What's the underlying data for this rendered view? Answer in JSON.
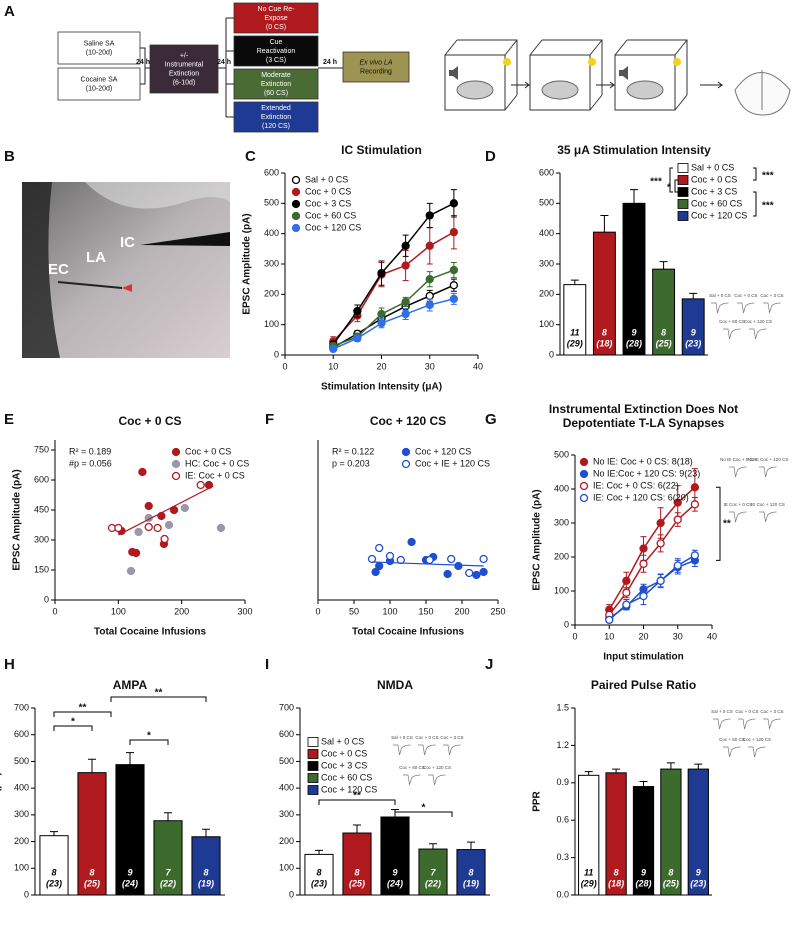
{
  "panel_a": {
    "panel": "A",
    "boxes": [
      {
        "lines": [
          "Saline SA",
          "(10-20d)"
        ]
      },
      {
        "lines": [
          "Cocaine SA",
          "(10-20d)"
        ]
      },
      {
        "lines": [
          "+/-",
          "Instrumental",
          "Extinction",
          "(6-10d)"
        ]
      },
      {
        "lines": [
          "No Cue Re-",
          "Expose",
          "(0 CS)"
        ]
      },
      {
        "lines": [
          "Cue",
          "Reactivation",
          "(3 CS)"
        ]
      },
      {
        "lines": [
          "Moderate",
          "Extinction",
          "(60 CS)"
        ]
      },
      {
        "lines": [
          "Extended",
          "Extinction",
          "(120 CS)"
        ]
      },
      {
        "lines": [
          "Ex vivo LA",
          "Recording"
        ]
      }
    ],
    "arrows": [
      "24 h",
      "24 h",
      "24 h"
    ]
  },
  "panel_b": {
    "panel": "B",
    "labels": [
      "EC",
      "LA",
      "IC"
    ]
  },
  "chart_data": [
    {
      "type": "line",
      "panel": "C",
      "title": "IC Stimulation",
      "xlabel": "Stimulation Intensity (μA)",
      "ylabel": "EPSC Amplitude (pA)",
      "xlim": [
        0,
        40
      ],
      "xticks": [
        0,
        10,
        20,
        30,
        40
      ],
      "ylim": [
        0,
        600
      ],
      "yticks": [
        0,
        100,
        200,
        300,
        400,
        500,
        600
      ],
      "x": [
        10,
        15,
        20,
        25,
        30,
        35
      ],
      "series": [
        {
          "name": "Sal + 0 CS",
          "color": "#000000",
          "filled": false,
          "values": [
            25,
            70,
            120,
            160,
            195,
            230
          ],
          "errors": [
            6,
            10,
            12,
            15,
            18,
            20
          ]
        },
        {
          "name": "Coc + 0 CS",
          "color": "#b0191e",
          "filled": true,
          "values": [
            45,
            130,
            265,
            295,
            360,
            405
          ],
          "errors": [
            15,
            20,
            40,
            50,
            60,
            55
          ]
        },
        {
          "name": "Coc + 3 CS",
          "color": "#000000",
          "filled": true,
          "values": [
            35,
            145,
            270,
            360,
            460,
            500
          ],
          "errors": [
            10,
            20,
            40,
            35,
            40,
            45
          ]
        },
        {
          "name": "Coc + 60 CS",
          "color": "#3d6b2e",
          "filled": true,
          "values": [
            30,
            60,
            135,
            175,
            250,
            280
          ],
          "errors": [
            8,
            12,
            20,
            15,
            25,
            25
          ]
        },
        {
          "name": "Coc + 120 CS",
          "color": "#2f6fe8",
          "filled": true,
          "values": [
            20,
            55,
            105,
            135,
            165,
            185
          ],
          "errors": [
            5,
            10,
            15,
            18,
            20,
            18
          ]
        }
      ]
    },
    {
      "type": "bar",
      "panel": "D",
      "title": "35 μA Stimulation Intensity",
      "ylim": [
        0,
        600
      ],
      "yticks": [
        0,
        100,
        200,
        300,
        400,
        500,
        600
      ],
      "values": [
        232,
        405,
        500,
        283,
        185
      ],
      "errors": [
        15,
        55,
        45,
        25,
        18
      ],
      "colors": [
        "#ffffff",
        "#b0191e",
        "#000000",
        "#3d6b2e",
        "#1f3a93"
      ],
      "n_labels": [
        [
          "11",
          "(29)"
        ],
        [
          "8",
          "(18)"
        ],
        [
          "9",
          "(28)"
        ],
        [
          "8",
          "(25)"
        ],
        [
          "9",
          "(23)"
        ]
      ],
      "legend": [
        "Sal + 0 CS",
        "Coc + 0 CS",
        "Coc + 3 CS",
        "Coc + 60 CS",
        "Coc + 120 CS"
      ],
      "annotations": [
        "***",
        "*",
        "***",
        "***"
      ],
      "inset_labels": [
        "Sal + 0 CS",
        "Coc + 0 CS",
        "Coc + 3 CS",
        "Coc + 60 CS",
        "Coc + 120 CS"
      ]
    },
    {
      "type": "scatter",
      "panel": "E",
      "title": "Coc + 0 CS",
      "xlabel": "Total Cocaine Infusions",
      "ylabel": "EPSC Amplitude (pA)",
      "xlim": [
        0,
        300
      ],
      "xticks": [
        0,
        100,
        200,
        300
      ],
      "ylim": [
        0,
        800
      ],
      "yticks": [
        0,
        150,
        300,
        450,
        600,
        750
      ],
      "stats": [
        "R² = 0.189",
        "#p = 0.056"
      ],
      "series": [
        {
          "name": "Coc + 0 CS",
          "color": "#b0191e",
          "filled": true,
          "x": [
            105,
            122,
            128,
            138,
            148,
            168,
            172,
            188,
            243
          ],
          "y": [
            345,
            240,
            235,
            640,
            470,
            420,
            280,
            450,
            575
          ]
        },
        {
          "name": "HC: Coc + 0 CS",
          "color": "#9a98a8",
          "filled": true,
          "x": [
            120,
            132,
            148,
            180,
            205,
            262
          ],
          "y": [
            145,
            340,
            410,
            375,
            460,
            360
          ]
        },
        {
          "name": "IE:  Coc + 0 CS",
          "color": "#b0191e",
          "filled": false,
          "x": [
            90,
            100,
            148,
            162,
            173,
            230
          ],
          "y": [
            360,
            360,
            365,
            360,
            305,
            575
          ]
        }
      ],
      "fit": {
        "color": "#b0191e",
        "x": [
          100,
          250
        ],
        "y": [
          325,
          570
        ]
      }
    },
    {
      "type": "scatter",
      "panel": "F",
      "title": "Coc + 120 CS",
      "xlabel": "Total Cocaine Infusions",
      "xlim": [
        0,
        250
      ],
      "xticks": [
        0,
        50,
        100,
        150,
        200,
        250
      ],
      "ylim": [
        0,
        800
      ],
      "stats": [
        "R² = 0.122",
        "p = 0.203"
      ],
      "series": [
        {
          "name": "Coc + 120 CS",
          "color": "#1f4fd0",
          "filled": true,
          "x": [
            80,
            85,
            100,
            130,
            150,
            160,
            180,
            195,
            220,
            230
          ],
          "y": [
            140,
            170,
            195,
            290,
            200,
            215,
            130,
            170,
            125,
            140
          ]
        },
        {
          "name": "Coc + IE + 120 CS",
          "color": "#1f4fd0",
          "filled": false,
          "x": [
            75,
            85,
            100,
            115,
            155,
            185,
            210,
            230
          ],
          "y": [
            205,
            260,
            220,
            200,
            200,
            205,
            135,
            205
          ]
        }
      ],
      "fit": {
        "color": "#1f4fd0",
        "x": [
          75,
          230
        ],
        "y": [
          190,
          170
        ]
      }
    },
    {
      "type": "line",
      "panel": "G",
      "title": [
        "Instrumental Extinction Does Not",
        "Depotentiate T-LA Synapses"
      ],
      "xlabel": "Input stimulation",
      "ylabel": "EPSC Amplitude  (pA)",
      "xlim": [
        0,
        40
      ],
      "xticks": [
        0,
        10,
        20,
        30,
        40
      ],
      "ylim": [
        0,
        500
      ],
      "yticks": [
        0,
        100,
        200,
        300,
        400,
        500
      ],
      "x": [
        10,
        15,
        20,
        25,
        30,
        35
      ],
      "series": [
        {
          "name": "No IE: Coc + 0 CS: 8(18)",
          "color": "#b0191e",
          "filled": true,
          "values": [
            45,
            130,
            225,
            300,
            360,
            405
          ],
          "errors": [
            15,
            25,
            35,
            45,
            50,
            55
          ]
        },
        {
          "name": "No IE:Coc + 120 CS: 9(23)",
          "color": "#1f4fd0",
          "filled": true,
          "values": [
            20,
            55,
            105,
            130,
            170,
            190
          ],
          "errors": [
            5,
            10,
            15,
            18,
            20,
            18
          ]
        },
        {
          "name": "IE: Coc + 0 CS: 6(22)",
          "color": "#b0191e",
          "filled": false,
          "values": [
            30,
            95,
            180,
            240,
            310,
            355
          ],
          "errors": [
            10,
            15,
            25,
            25,
            20,
            20
          ]
        },
        {
          "name": "IE: Coc + 120 CS: 6(20)",
          "color": "#1f4fd0",
          "filled": false,
          "values": [
            15,
            60,
            85,
            130,
            175,
            205
          ],
          "errors": [
            5,
            15,
            25,
            20,
            20,
            15
          ]
        }
      ],
      "annotations": [
        "**"
      ],
      "inset_labels": [
        "No IE Coc + 0 CS",
        "No IE Coc + 120 CS",
        "IE Coc + 0 CS",
        "IE Coc + 120 CS"
      ]
    },
    {
      "type": "bar",
      "panel": "H",
      "title": "AMPA",
      "ylabel": "Current (pA)",
      "ylim": [
        0,
        700
      ],
      "yticks": [
        0,
        100,
        200,
        300,
        400,
        500,
        600,
        700
      ],
      "values": [
        222,
        458,
        488,
        278,
        218
      ],
      "errors": [
        15,
        50,
        45,
        30,
        28
      ],
      "colors": [
        "#ffffff",
        "#b0191e",
        "#000000",
        "#3d6b2e",
        "#1f3a93"
      ],
      "n_labels": [
        [
          "8",
          "(23)"
        ],
        [
          "8",
          "(25)"
        ],
        [
          "9",
          "(24)"
        ],
        [
          "7",
          "(22)"
        ],
        [
          "8",
          "(19)"
        ]
      ],
      "annotations": [
        "**",
        "**",
        "*",
        "*"
      ]
    },
    {
      "type": "bar",
      "panel": "I",
      "title": "NMDA",
      "ylim": [
        0,
        700
      ],
      "yticks": [
        0,
        100,
        200,
        300,
        400,
        500,
        600,
        700
      ],
      "values": [
        152,
        232,
        292,
        172,
        170
      ],
      "errors": [
        15,
        30,
        28,
        20,
        28
      ],
      "colors": [
        "#ffffff",
        "#b0191e",
        "#000000",
        "#3d6b2e",
        "#1f3a93"
      ],
      "n_labels": [
        [
          "8",
          "(23)"
        ],
        [
          "8",
          "(25)"
        ],
        [
          "9",
          "(24)"
        ],
        [
          "7",
          "(22)"
        ],
        [
          "8",
          "(19)"
        ]
      ],
      "legend": [
        "Sal + 0 CS",
        "Coc + 0 CS",
        "Coc + 3 CS",
        "Coc + 60 CS",
        "Coc + 120  CS"
      ],
      "annotations": [
        "**",
        "*"
      ],
      "inset_labels": [
        "Sal + 0 CS",
        "Coc + 0 CS",
        "Coc + 3 CS",
        "Coc + 60 CS",
        "Coc + 120 CS"
      ]
    },
    {
      "type": "bar",
      "panel": "J",
      "title": "Paired Pulse Ratio",
      "ylabel": "PPR",
      "ylim": [
        0,
        1.5
      ],
      "yticks": [
        {
          "value": 0,
          "label": "0.0"
        },
        0.3,
        0.6,
        0.9,
        1.2,
        1.5
      ],
      "values": [
        0.96,
        0.98,
        0.87,
        1.01,
        1.01
      ],
      "errors": [
        0.03,
        0.03,
        0.04,
        0.05,
        0.04
      ],
      "colors": [
        "#ffffff",
        "#b0191e",
        "#000000",
        "#3d6b2e",
        "#1f3a93"
      ],
      "n_labels": [
        [
          "11",
          "(29)"
        ],
        [
          "8",
          "(18)"
        ],
        [
          "9",
          "(28)"
        ],
        [
          "8",
          "(25)"
        ],
        [
          "9",
          "(23)"
        ]
      ],
      "inset_labels": [
        "Sal + 0 CS",
        "Coc + 0 CS",
        "Coc + 3 CS",
        "Coc + 60 CS",
        "Coc + 120 CS"
      ]
    }
  ]
}
